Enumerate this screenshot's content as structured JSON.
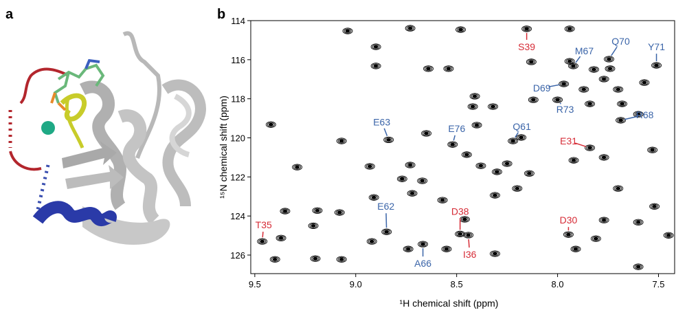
{
  "panel_labels": [
    "a",
    "b"
  ],
  "chart_data": {
    "type": "scatter",
    "xlabel": "¹H chemical shift (ppm)",
    "ylabel": "¹⁵N chemical shift (ppm)",
    "xlim": [
      9.52,
      7.42
    ],
    "ylim": [
      114,
      126.95
    ],
    "xticks": [
      9.5,
      {
        "value": 9,
        "label": "9.0"
      },
      8.5,
      {
        "value": 8,
        "label": "8.0"
      },
      7.5
    ],
    "yticks": [
      114,
      116,
      118,
      120,
      122,
      124,
      126
    ],
    "color": "#000000",
    "x": [
      9.04,
      8.9,
      8.9,
      8.64,
      8.54,
      8.73,
      8.48,
      7.94,
      7.94,
      8.13,
      7.82,
      7.74,
      8.41,
      8.12,
      7.84,
      7.68,
      7.6,
      9.42,
      9.07,
      8.93,
      8.65,
      8.73,
      8.77,
      8.67,
      8.45,
      8.3,
      8.25,
      8.38,
      8.14,
      7.92,
      7.77,
      7.7,
      7.53,
      9.29,
      9.35,
      9.19,
      9.08,
      8.91,
      8.72,
      8.57,
      8.46,
      8.31,
      8.2,
      7.77,
      7.6,
      7.52,
      7.45,
      7.81,
      8.92,
      9.37,
      9.21,
      9.2,
      9.07,
      8.74,
      8.55,
      8.31,
      7.91,
      7.6,
      9.4,
      8.18,
      8.4,
      8.42,
      8.32,
      7.57,
      7.7,
      7.77,
      7.87
    ],
    "y": [
      114.53,
      115.34,
      116.32,
      116.46,
      116.46,
      114.39,
      114.46,
      114.42,
      116.08,
      116.11,
      116.5,
      116.46,
      117.87,
      118.05,
      118.26,
      118.26,
      118.79,
      119.32,
      120.16,
      121.46,
      119.77,
      121.39,
      122.1,
      122.2,
      120.86,
      121.74,
      121.32,
      121.43,
      121.82,
      121.15,
      121.0,
      122.59,
      120.62,
      121.5,
      123.75,
      123.72,
      123.82,
      123.05,
      122.84,
      123.19,
      124.17,
      122.94,
      122.59,
      124.21,
      124.32,
      123.51,
      124.99,
      125.16,
      125.3,
      125.13,
      124.5,
      126.18,
      126.22,
      125.69,
      125.69,
      125.93,
      125.69,
      126.6,
      126.22,
      119.98,
      119.35,
      118.4,
      118.4,
      117.17,
      117.52,
      116.99,
      117.52
    ],
    "annotations": [
      {
        "label": "S39",
        "x": 8.153,
        "y": 114.42,
        "color": "#d62b36"
      },
      {
        "label": "M67",
        "x": 7.922,
        "y": 116.32,
        "color": "#3a64a8"
      },
      {
        "label": "Q70",
        "x": 7.745,
        "y": 115.97,
        "color": "#3a64a8"
      },
      {
        "label": "Y71",
        "x": 7.51,
        "y": 116.29,
        "color": "#3a64a8"
      },
      {
        "label": "D69",
        "x": 7.969,
        "y": 117.24,
        "color": "#3a64a8"
      },
      {
        "label": "R73",
        "x": 8.0,
        "y": 118.05,
        "color": "#3a64a8"
      },
      {
        "label": "R68",
        "x": 7.687,
        "y": 119.1,
        "color": "#3a64a8"
      },
      {
        "label": "E63",
        "x": 8.837,
        "y": 120.1,
        "color": "#3a64a8"
      },
      {
        "label": "E76",
        "x": 8.52,
        "y": 120.34,
        "color": "#3a64a8"
      },
      {
        "label": "Q61",
        "x": 8.221,
        "y": 120.16,
        "color": "#3a64a8"
      },
      {
        "label": "E31",
        "x": 7.84,
        "y": 120.51,
        "color": "#d62b36"
      },
      {
        "label": "E62",
        "x": 8.847,
        "y": 124.81,
        "color": "#3a64a8"
      },
      {
        "label": "D38",
        "x": 8.483,
        "y": 124.92,
        "color": "#d62b36"
      },
      {
        "label": "D30",
        "x": 7.946,
        "y": 124.95,
        "color": "#d62b36"
      },
      {
        "label": "T35",
        "x": 9.463,
        "y": 125.3,
        "color": "#d62b36"
      },
      {
        "label": "I36",
        "x": 8.442,
        "y": 124.98,
        "color": "#d62b36"
      },
      {
        "label": "A66",
        "x": 8.667,
        "y": 125.44,
        "color": "#3a64a8"
      }
    ]
  }
}
